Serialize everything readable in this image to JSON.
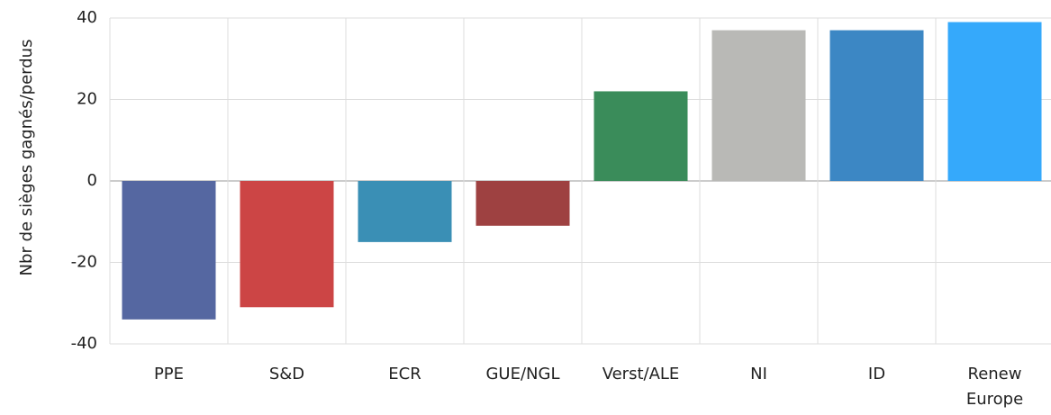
{
  "chart_data": {
    "type": "bar",
    "y_label": "Nbr de sièges gagnés/perdus",
    "categories": [
      "PPE",
      "S&D",
      "ECR",
      "GUE/NGL",
      "Verst/ALE",
      "NI",
      "ID",
      "Renew Europe"
    ],
    "values": [
      -34,
      -31,
      -15,
      -11,
      22,
      37,
      37,
      39
    ],
    "colors": [
      "#5567a1",
      "#cc4545",
      "#3a8fb5",
      "#9e4141",
      "#3a8c5a",
      "#b9b9b6",
      "#3c87c4",
      "#35a9fb"
    ],
    "ylim": [
      -40,
      40
    ],
    "yticks": [
      -40,
      -20,
      0,
      20,
      40
    ],
    "grid": true
  }
}
